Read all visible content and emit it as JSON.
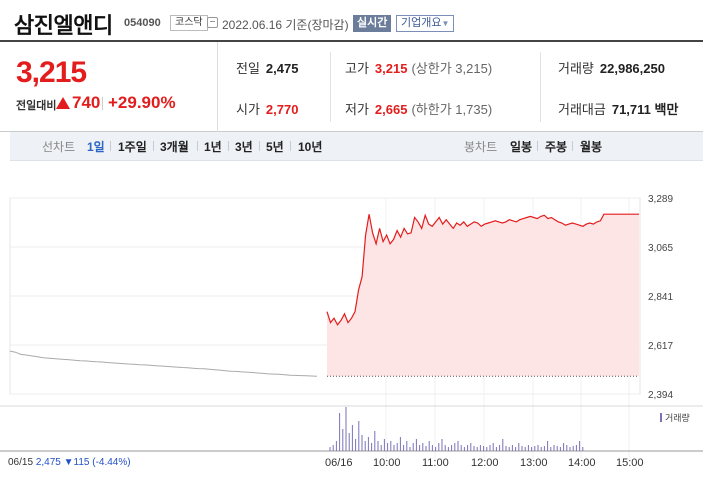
{
  "header": {
    "stock_name": "삼진엘앤디",
    "stock_code": "054090",
    "market": "코스닥",
    "date": "2022.06.16 기준(장마감)",
    "realtime_label": "실시간",
    "company_label": "기업개요"
  },
  "price": {
    "current": "3,215",
    "change_label": "전일대비",
    "change_value": "740",
    "change_pct": "+29.90%",
    "color_up": "#e31d1d"
  },
  "stats": {
    "prev": {
      "label": "전일",
      "value": "2,475"
    },
    "high": {
      "label": "고가",
      "value": "3,215",
      "sub": "(상한가 3,215)"
    },
    "volume": {
      "label": "거래량",
      "value": "22,986,250"
    },
    "open": {
      "label": "시가",
      "value": "2,770"
    },
    "low": {
      "label": "저가",
      "value": "2,665",
      "sub": "(하한가 1,735)"
    },
    "amount": {
      "label": "거래대금",
      "value": "71,711 백만"
    }
  },
  "tabs": {
    "line_label": "선차트",
    "line_periods": [
      "1일",
      "1주일",
      "3개월",
      "1년",
      "3년",
      "5년",
      "10년"
    ],
    "active": "1일",
    "candle_label": "봉차트",
    "candle_periods": [
      "일봉",
      "주봉",
      "월봉"
    ]
  },
  "chart_data": {
    "type": "line",
    "title": "",
    "ylabel": "",
    "y_ticks": [
      "3,289",
      "3,065",
      "2,841",
      "2,617",
      "2,394"
    ],
    "ylim": [
      2394,
      3289
    ],
    "x_ticks": [
      "06/15",
      "06/16",
      "10:00",
      "11:00",
      "12:00",
      "13:00",
      "14:00",
      "15:00"
    ],
    "prev_day_close": 2475,
    "series": [
      {
        "values": [
          2590,
          2585,
          2575,
          2572,
          2568,
          2565,
          2560,
          2558,
          2556,
          2554,
          2552,
          2550,
          2548,
          2546,
          2545,
          2543,
          2541,
          2540,
          2538,
          2536,
          2534,
          2533,
          2531,
          2530,
          2528,
          2527,
          2525,
          2523,
          2522,
          2520,
          2518,
          2517,
          2515,
          2514,
          2512,
          2510,
          2509,
          2507,
          2505,
          2503,
          2500,
          2498,
          2497,
          2495,
          2494,
          2492,
          2490,
          2488,
          2486,
          2485,
          2484,
          2482,
          2480,
          2479,
          2478,
          2477,
          2476,
          2475
        ]
      },
      {
        "values": [
          2770,
          2720,
          2740,
          2710,
          2730,
          2760,
          2720,
          2740,
          2770,
          2870,
          2930,
          3120,
          3215,
          3130,
          3080,
          3150,
          3090,
          3120,
          3080,
          3100,
          3140,
          3110,
          3150,
          3125,
          3130,
          3200,
          3180,
          3150,
          3210,
          3170,
          3160,
          3180,
          3200,
          3170,
          3190,
          3170,
          3150,
          3175,
          3165,
          3180,
          3160,
          3170,
          3180,
          3175,
          3160,
          3170,
          3175,
          3180,
          3185,
          3180,
          3175,
          3180,
          3190,
          3185,
          3180,
          3190,
          3195,
          3200,
          3205,
          3200,
          3195,
          3205,
          3210,
          3195,
          3200,
          3190,
          3180,
          3175,
          3165,
          3170,
          3175,
          3170,
          3165,
          3160,
          3170,
          3175,
          3170,
          3180,
          3185,
          3215,
          3215,
          3215,
          3215,
          3215,
          3215,
          3215,
          3215,
          3215,
          3215,
          3215
        ]
      }
    ],
    "volume_label": "거래량",
    "prev_day_text": {
      "date": "06/15",
      "close": "2,475",
      "change": "▼115",
      "pct": "(-4.44%)"
    }
  }
}
